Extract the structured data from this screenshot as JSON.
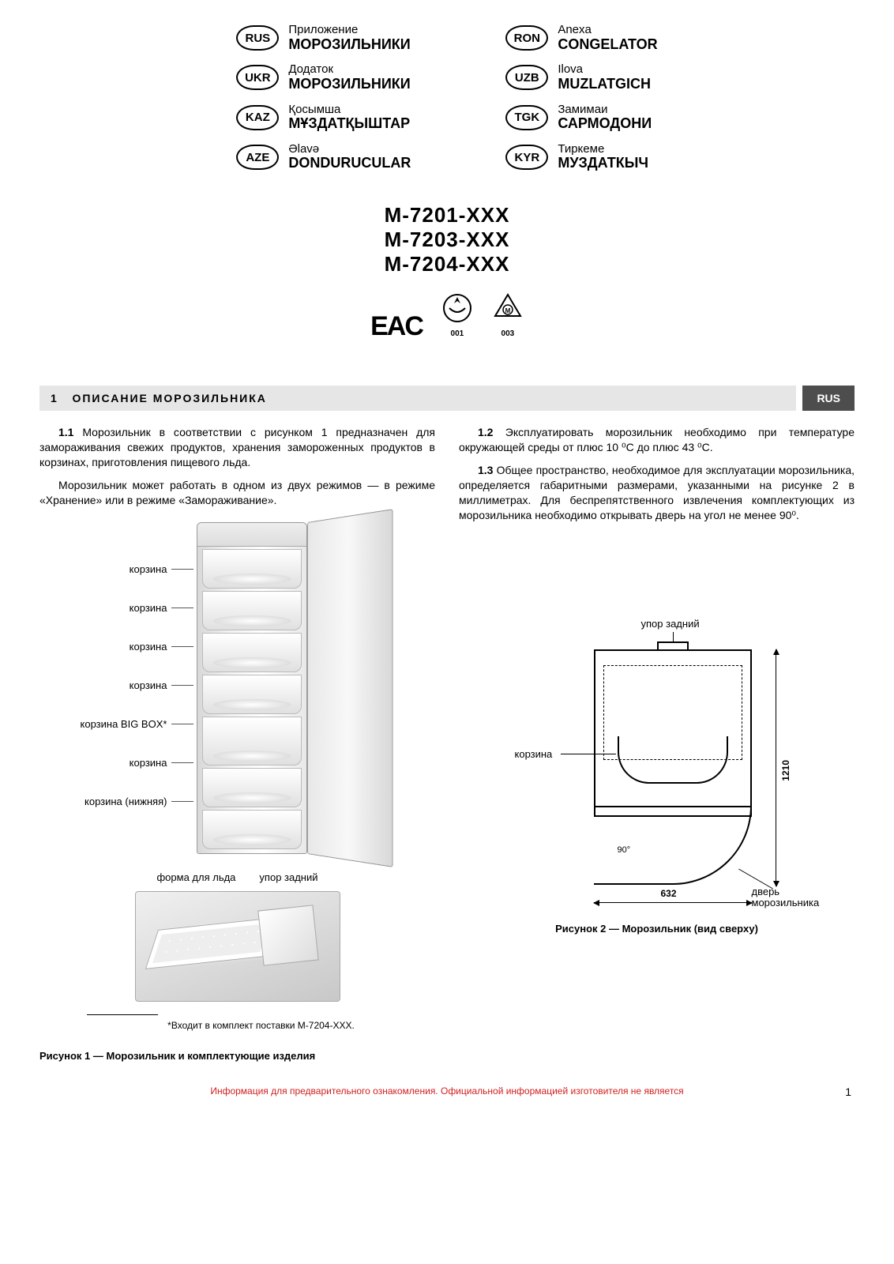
{
  "languages": {
    "left": [
      {
        "code": "RUS",
        "sub": "Приложение",
        "title": "МОРОЗИЛЬНИКИ"
      },
      {
        "code": "UKR",
        "sub": "Додаток",
        "title": "МОРОЗИЛЬНИКИ"
      },
      {
        "code": "KAZ",
        "sub": "Қосымша",
        "title": "МҰЗДАТҚЫШТАР"
      },
      {
        "code": "AZE",
        "sub": "Əlavə",
        "title": "DONDURUCULAR"
      }
    ],
    "right": [
      {
        "code": "RON",
        "sub": "Anexa",
        "title": "CONGELATOR"
      },
      {
        "code": "UZB",
        "sub": "Ilova",
        "title": "MUZLATGICH"
      },
      {
        "code": "TGK",
        "sub": "Замимаи",
        "title": "САРМОДОНИ"
      },
      {
        "code": "KYR",
        "sub": "Тиркеме",
        "title": "МУЗДАТКЫЧ"
      }
    ]
  },
  "models": [
    "М-7201-ХХХ",
    "М-7203-ХХХ",
    "М-7204-ХХХ"
  ],
  "cert": {
    "eac": "EAC",
    "c001": "001",
    "c003": "003"
  },
  "section": {
    "num": "1",
    "title": "ОПИСАНИЕ МОРОЗИЛЬНИКА",
    "lang": "RUS"
  },
  "paragraphs": {
    "p11_label": "1.1",
    "p11": " Морозильник в соответствии с рисунком 1 предназначен для замораживания свежих продуктов, хранения замороженных продуктов в корзинах, приготовления пищевого льда.",
    "p11b": "Морозильник может работать в одном из двух режимов — в режиме «Хранение» или в режиме «Замораживание».",
    "p12_label": "1.2",
    "p12": " Эксплуатировать морозильник необходимо при температуре окружающей среды от плюс 10 ⁰С до плюс 43 ⁰С.",
    "p13_label": "1.3",
    "p13": " Общее пространство, необходимое для эксплуатации морозильника, определяется габаритными размерами, указанными на рисунке 2 в миллиметрах. Для беспрепятственного извлечения комплектующих из морозильника необходимо открывать дверь на угол не менее 90⁰."
  },
  "fig1": {
    "labels": [
      "корзина",
      "корзина",
      "корзина",
      "корзина",
      "корзина BIG BOX*",
      "корзина",
      "корзина (нижняя)"
    ],
    "acc": {
      "ice": "форма для льда",
      "stop": "упор задний"
    },
    "footnote": "*Входит в комплект поставки М-7204-ХХХ.",
    "caption": "Рисунок 1 — Морозильник и комплектующие изделия"
  },
  "fig2": {
    "rear_stop": "упор задний",
    "basket": "корзина",
    "door": "дверь морозильника",
    "dim_w": "632",
    "dim_d": "1210",
    "angle": "90°",
    "caption": "Рисунок 2 — Морозильник (вид сверху)"
  },
  "disclaimer": "Информация для предварительного ознакомления. Официальной информацией изготовителя не является",
  "page_number": "1"
}
